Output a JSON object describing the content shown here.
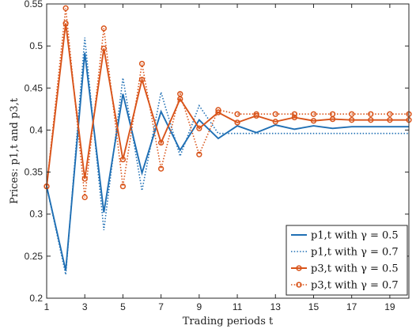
{
  "chart_data": {
    "type": "line",
    "xlabel": "Trading periods t",
    "ylabel": "Prices: p1,t and p3,t",
    "xlim": [
      1,
      20
    ],
    "ylim": [
      0.2,
      0.55
    ],
    "xticks": [
      1,
      3,
      5,
      7,
      9,
      11,
      13,
      15,
      17,
      19
    ],
    "yticks": [
      0.2,
      0.25,
      0.3,
      0.35,
      0.4,
      0.45,
      0.5,
      0.55
    ],
    "grid": false,
    "legend_position": "bottom-right",
    "x": [
      1,
      2,
      3,
      4,
      5,
      6,
      7,
      8,
      9,
      10,
      11,
      12,
      13,
      14,
      15,
      16,
      17,
      18,
      19,
      20
    ],
    "series": [
      {
        "name": "p1,t with γ = 0.5",
        "color": "#1f6fb4",
        "style": "solid",
        "marker": "none",
        "values": [
          0.333,
          0.233,
          0.492,
          0.302,
          0.443,
          0.349,
          0.422,
          0.376,
          0.412,
          0.39,
          0.405,
          0.397,
          0.406,
          0.401,
          0.405,
          0.402,
          0.404,
          0.404,
          0.404,
          0.404
        ]
      },
      {
        "name": "p1,t with γ = 0.7",
        "color": "#1f6fb4",
        "style": "dotted",
        "marker": "none",
        "values": [
          0.333,
          0.228,
          0.51,
          0.281,
          0.462,
          0.328,
          0.445,
          0.369,
          0.429,
          0.396,
          0.396,
          0.396,
          0.396,
          0.396,
          0.396,
          0.396,
          0.396,
          0.396,
          0.396,
          0.396
        ]
      },
      {
        "name": "p3,t with γ = 0.5",
        "color": "#d9541a",
        "style": "solid",
        "marker": "o",
        "values": [
          0.333,
          0.527,
          0.342,
          0.497,
          0.365,
          0.46,
          0.385,
          0.437,
          0.402,
          0.421,
          0.409,
          0.417,
          0.41,
          0.415,
          0.411,
          0.413,
          0.412,
          0.412,
          0.412,
          0.412
        ]
      },
      {
        "name": "p3,t with γ = 0.7",
        "color": "#d9541a",
        "style": "dotted",
        "marker": "o",
        "values": [
          0.333,
          0.545,
          0.32,
          0.521,
          0.333,
          0.479,
          0.354,
          0.443,
          0.371,
          0.424,
          0.419,
          0.419,
          0.419,
          0.419,
          0.419,
          0.419,
          0.419,
          0.419,
          0.419,
          0.419
        ]
      }
    ]
  }
}
